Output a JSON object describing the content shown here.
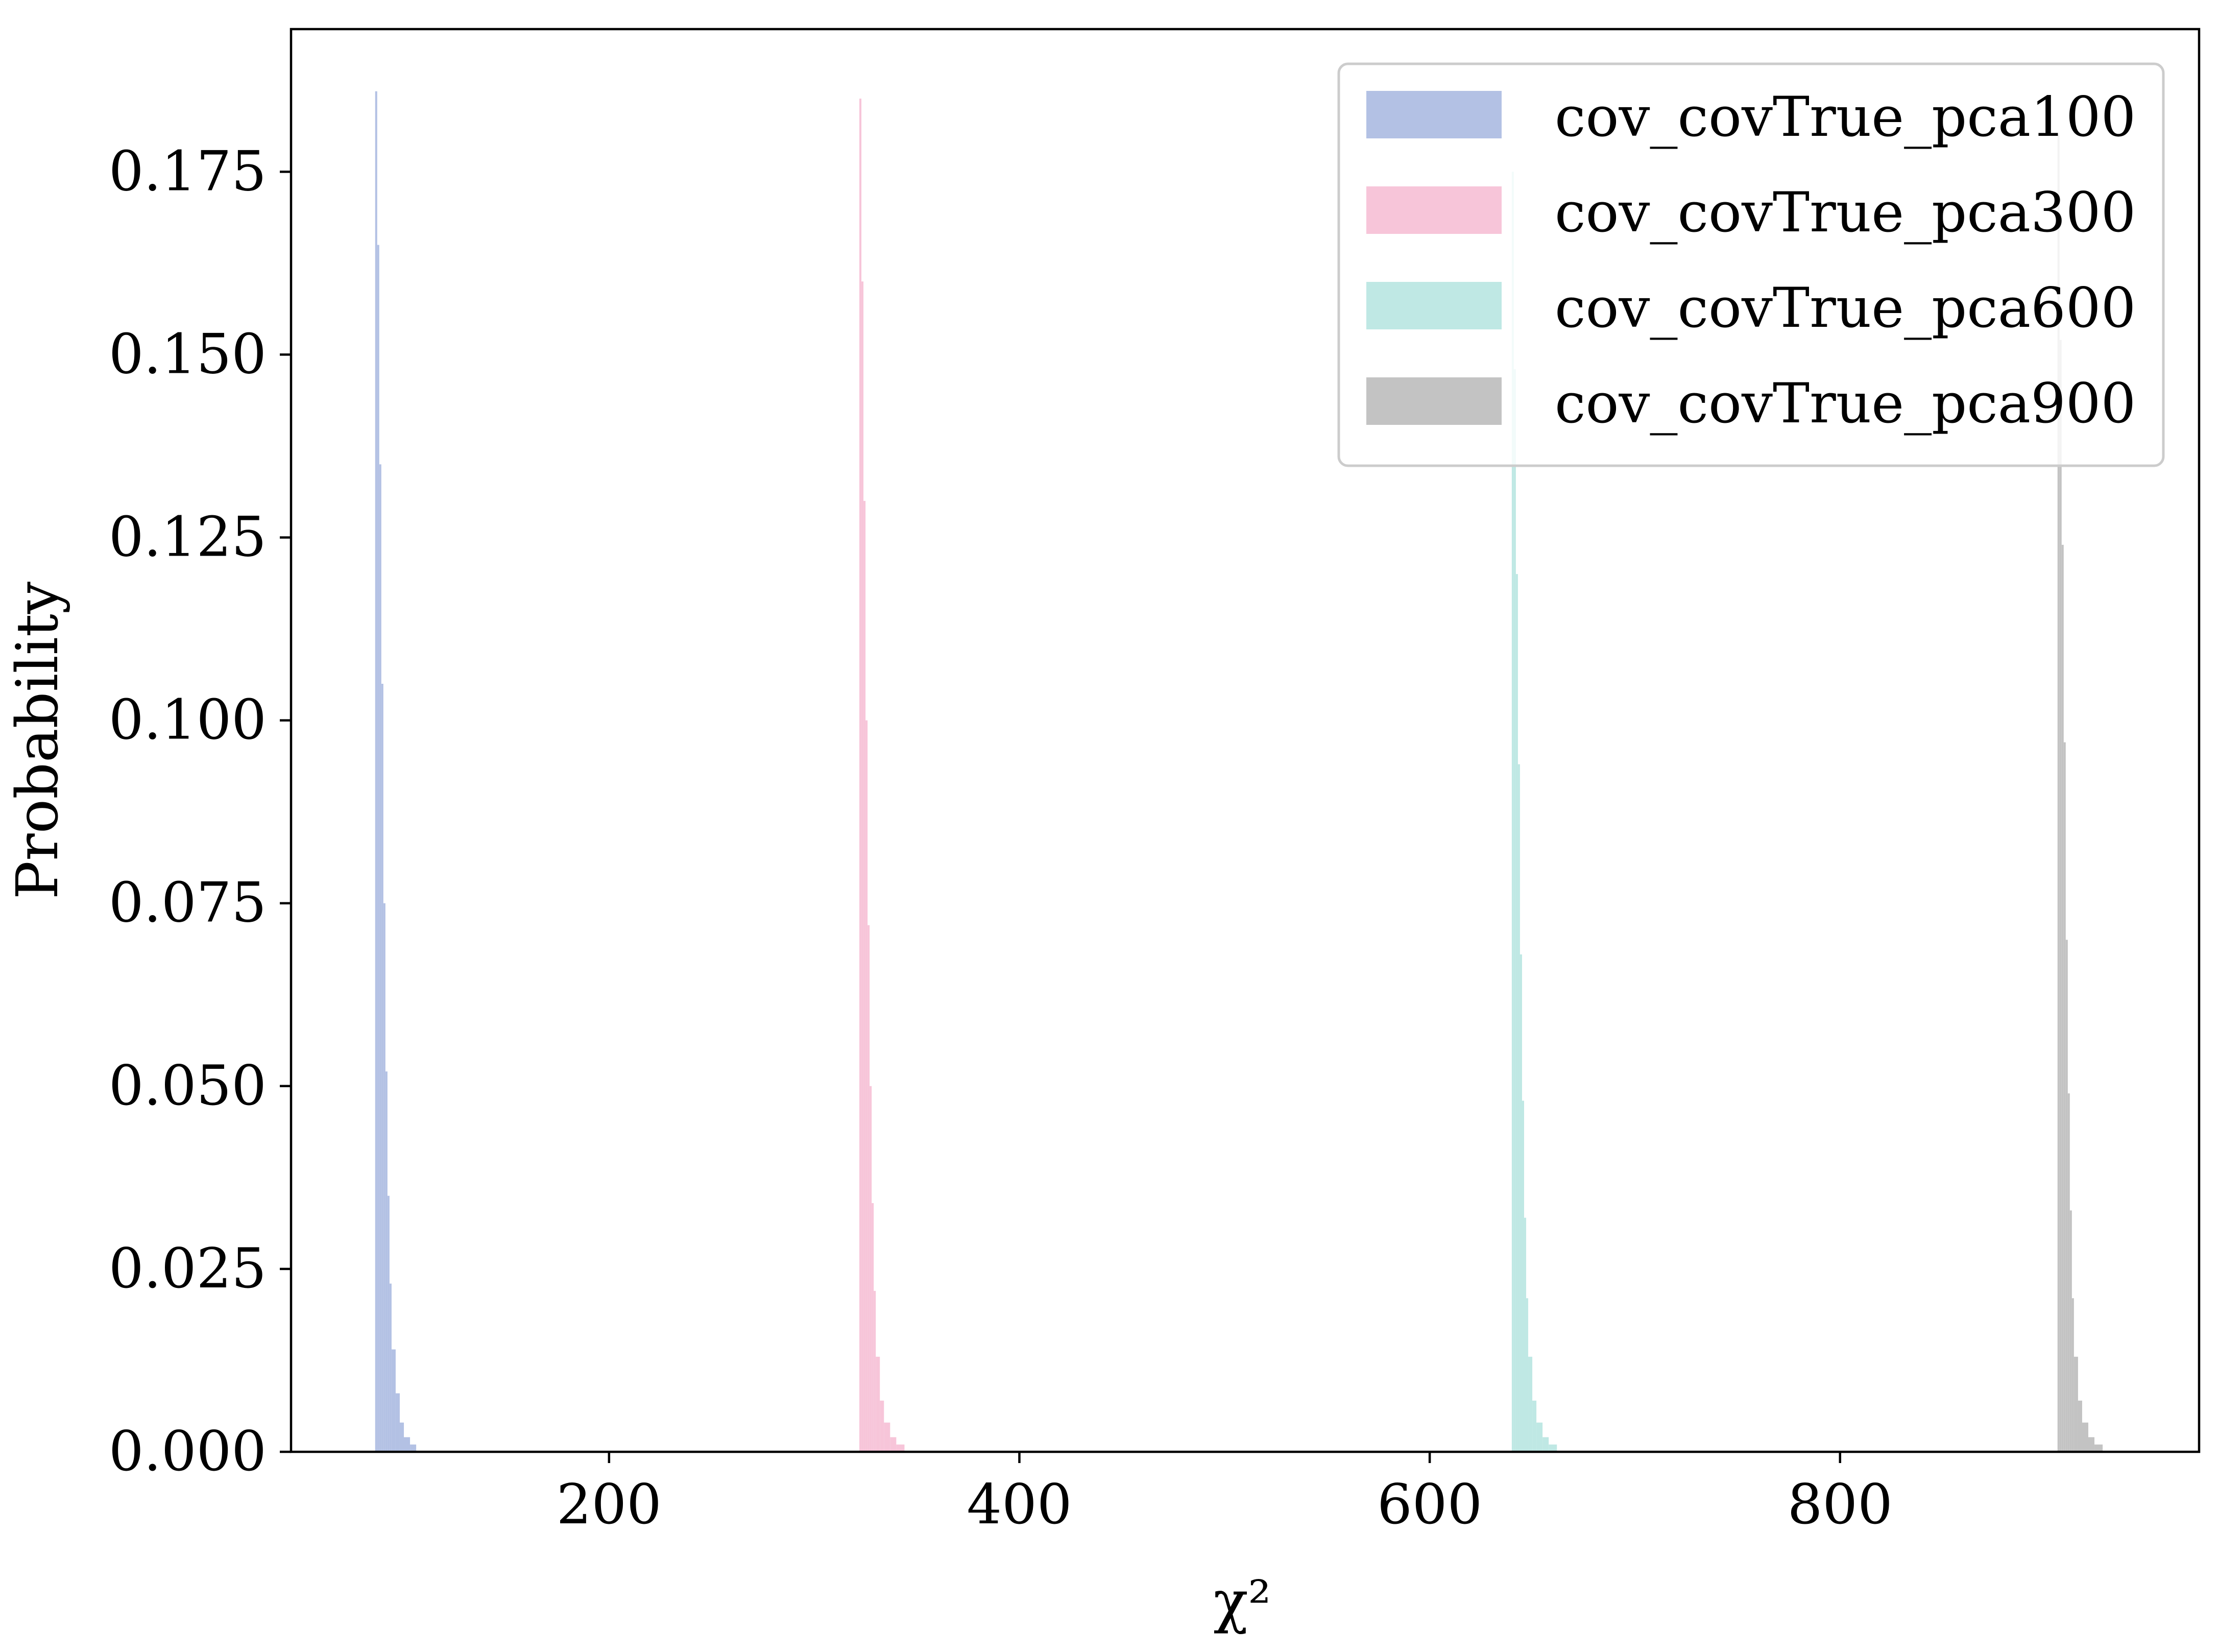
{
  "chart_data": {
    "type": "bar",
    "subtype": "histogram",
    "title": "",
    "xlabel": "χ²",
    "ylabel": "Probability",
    "xlim": [
      45,
      975
    ],
    "ylim": [
      0,
      0.1945
    ],
    "xticks": [
      200,
      400,
      600,
      800
    ],
    "xtick_labels": [
      "200",
      "400",
      "600",
      "800"
    ],
    "yticks": [
      0.0,
      0.025,
      0.05,
      0.075,
      0.1,
      0.125,
      0.15,
      0.175
    ],
    "ytick_labels": [
      "0.000",
      "0.025",
      "0.050",
      "0.075",
      "0.100",
      "0.125",
      "0.150",
      "0.175"
    ],
    "grid": false,
    "legend_position": "top-right",
    "series": [
      {
        "name": "cov_covTrue_pca100",
        "color": "#b3c1e4",
        "bin_edges": [
          86,
          87,
          88,
          89,
          90,
          91,
          92,
          93,
          94,
          96,
          98,
          100,
          103,
          106
        ],
        "values": [
          0.186,
          0.165,
          0.135,
          0.105,
          0.075,
          0.052,
          0.035,
          0.023,
          0.014,
          0.008,
          0.004,
          0.002,
          0.001
        ]
      },
      {
        "name": "cov_covTrue_pca300",
        "color": "#f7c5d9",
        "bin_edges": [
          322,
          323,
          324,
          325,
          326,
          327,
          328,
          329,
          330,
          332,
          334,
          337,
          340,
          344
        ],
        "values": [
          0.185,
          0.16,
          0.13,
          0.1,
          0.072,
          0.05,
          0.034,
          0.022,
          0.013,
          0.007,
          0.004,
          0.002,
          0.001
        ]
      },
      {
        "name": "cov_covTrue_pca600",
        "color": "#bfe8e4",
        "bin_edges": [
          640,
          641,
          642,
          643,
          644,
          645,
          646,
          647,
          648,
          650,
          652,
          655,
          658,
          662
        ],
        "values": [
          0.175,
          0.148,
          0.12,
          0.094,
          0.068,
          0.048,
          0.032,
          0.021,
          0.013,
          0.007,
          0.004,
          0.002,
          0.001
        ]
      },
      {
        "name": "cov_covTrue_pca900",
        "color": "#c3c3c3",
        "bin_edges": [
          906,
          907,
          908,
          909,
          910,
          911,
          912,
          913,
          914,
          916,
          918,
          921,
          924,
          928
        ],
        "values": [
          0.18,
          0.152,
          0.124,
          0.097,
          0.07,
          0.049,
          0.033,
          0.021,
          0.013,
          0.007,
          0.004,
          0.002,
          0.001
        ]
      }
    ]
  }
}
